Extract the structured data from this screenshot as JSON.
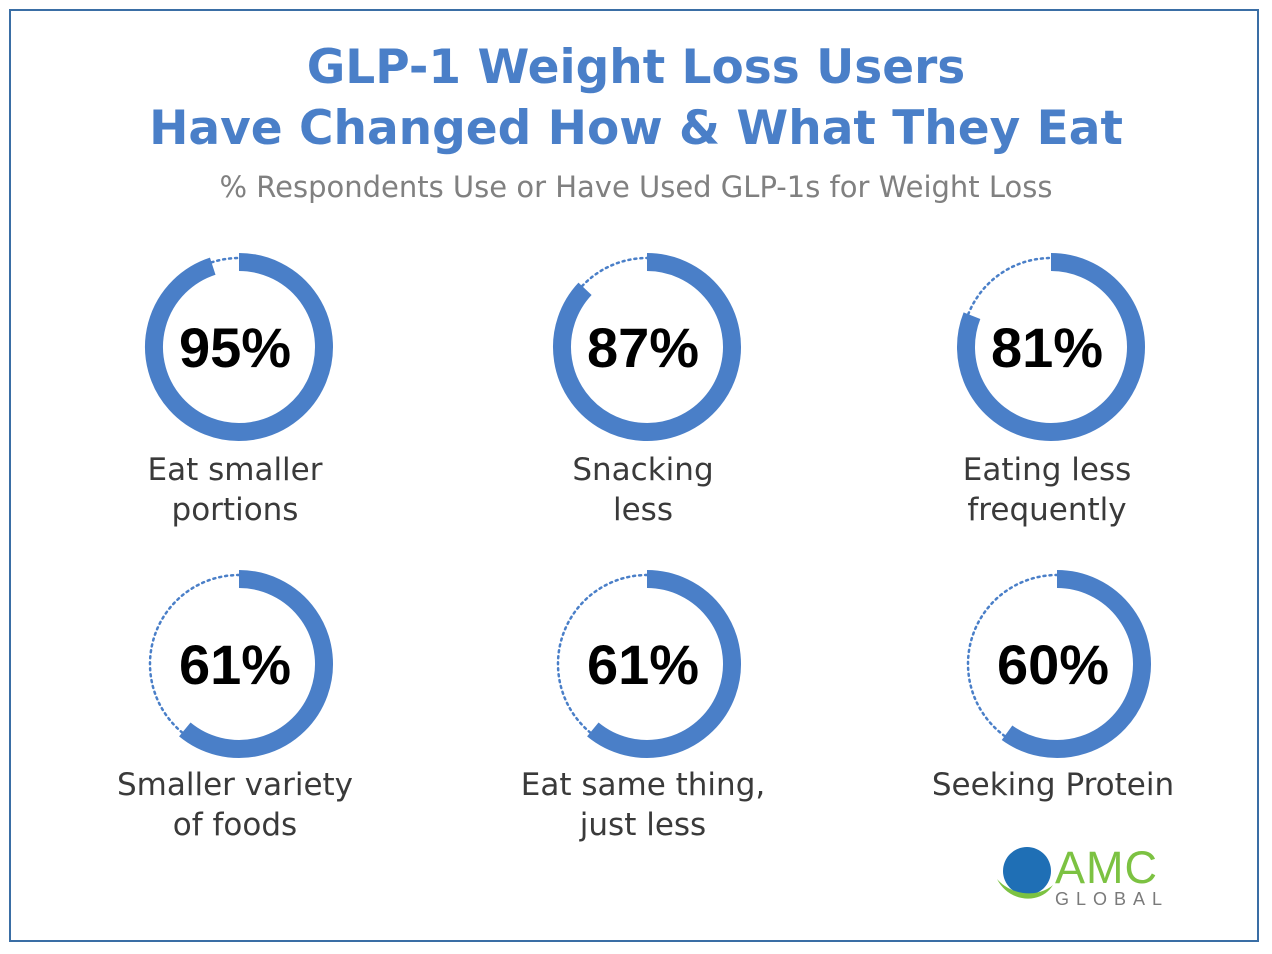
{
  "colors": {
    "title": "#4a7fc8",
    "ring": "#4a7fc8",
    "dotted": "#4a7fc8",
    "subtitle": "#808080",
    "frame": "#3a6ea5",
    "logo_blue": "#1f6fb5",
    "logo_green": "#7cc242",
    "logo_gray": "#7a7a7a"
  },
  "header": {
    "title_line1": "GLP-1 Weight Loss Users",
    "title_line2": "Have Changed How & What They Eat",
    "subtitle": "% Respondents Use or Have Used GLP-1s for Weight Loss"
  },
  "chart_data": {
    "type": "donut",
    "unit": "%",
    "items": [
      {
        "value": 95,
        "display": "95%",
        "label_lines": [
          "Eat smaller",
          "portions"
        ]
      },
      {
        "value": 87,
        "display": "87%",
        "label_lines": [
          "Snacking",
          "less"
        ]
      },
      {
        "value": 81,
        "display": "81%",
        "label_lines": [
          "Eating less",
          "frequently"
        ]
      },
      {
        "value": 61,
        "display": "61%",
        "label_lines": [
          "Smaller variety",
          "of foods"
        ]
      },
      {
        "value": 61,
        "display": "61%",
        "label_lines": [
          "Eat same thing,",
          "just less"
        ]
      },
      {
        "value": 60,
        "display": "60%",
        "label_lines": [
          "Seeking Protein"
        ]
      }
    ]
  },
  "logo": {
    "brand": "AMC",
    "tagline": "GLOBAL",
    "icon": "globe-swoosh-icon"
  }
}
